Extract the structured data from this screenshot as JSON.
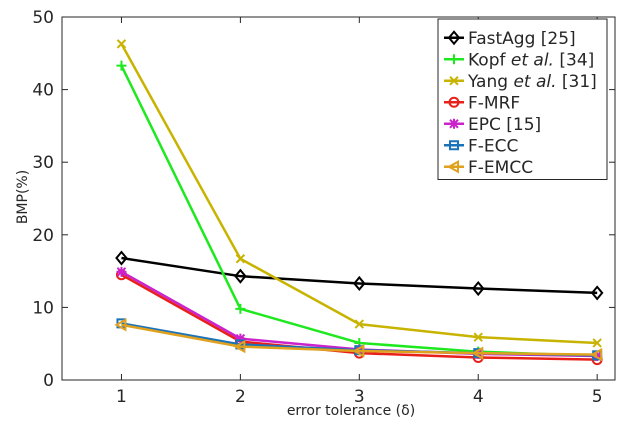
{
  "chart_data": {
    "type": "line",
    "xlabel": "error tolerance (δ)",
    "ylabel": "BMP(%)",
    "x": [
      1,
      2,
      3,
      4,
      5
    ],
    "xlim": [
      0.5,
      5.15
    ],
    "ylim": [
      0,
      50
    ],
    "xticks": [
      1,
      2,
      3,
      4,
      5
    ],
    "yticks": [
      0,
      10,
      20,
      30,
      40,
      50
    ],
    "grid": false,
    "legend_position": "top-right",
    "series": [
      {
        "name": "FastAgg [25]",
        "name_main": "FastAgg [25]",
        "name_italic": "",
        "name_tail": "",
        "color": "#000000",
        "marker": "diamond",
        "values": [
          16.8,
          14.3,
          13.3,
          12.6,
          12.0
        ]
      },
      {
        "name": "Kopf et al. [34]",
        "name_main": "Kopf ",
        "name_italic": "et al.",
        "name_tail": " [34]",
        "color": "#1ee81e",
        "marker": "plus",
        "values": [
          43.3,
          9.8,
          5.1,
          3.9,
          3.3
        ]
      },
      {
        "name": "Yang et al. [31]",
        "name_main": "Yang ",
        "name_italic": "et al.",
        "name_tail": " [31]",
        "color": "#c8b400",
        "marker": "x",
        "values": [
          46.3,
          16.7,
          7.7,
          5.9,
          5.1
        ]
      },
      {
        "name": "F-MRF",
        "name_main": "F-MRF",
        "name_italic": "",
        "name_tail": "",
        "color": "#e8201a",
        "marker": "circle",
        "values": [
          14.5,
          5.3,
          3.7,
          3.1,
          2.8
        ]
      },
      {
        "name": "EPC [15]",
        "name_main": "EPC [15]",
        "name_italic": "",
        "name_tail": "",
        "color": "#cc22cc",
        "marker": "star",
        "values": [
          14.9,
          5.7,
          4.2,
          3.6,
          3.3
        ]
      },
      {
        "name": "F-ECC",
        "name_main": "F-ECC",
        "name_italic": "",
        "name_tail": "",
        "color": "#1a72b8",
        "marker": "square",
        "values": [
          7.8,
          4.9,
          4.1,
          3.7,
          3.4
        ]
      },
      {
        "name": "F-EMCC",
        "name_main": "F-EMCC",
        "name_italic": "",
        "name_tail": "",
        "color": "#e0a21e",
        "marker": "triangle-left",
        "values": [
          7.6,
          4.6,
          4.0,
          3.7,
          3.5
        ]
      }
    ]
  }
}
